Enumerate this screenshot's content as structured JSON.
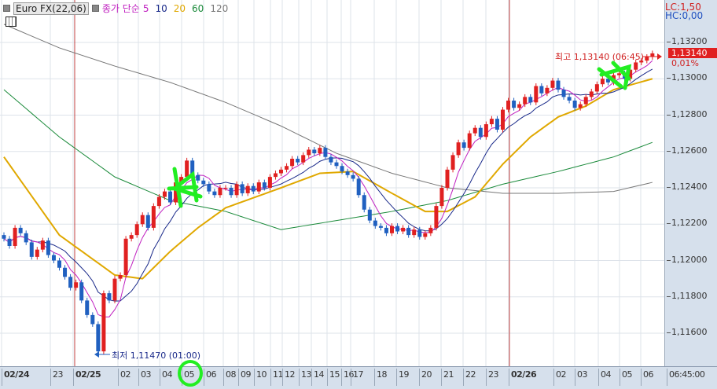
{
  "header": {
    "instrument": "Euro FX(22,06)",
    "ma_label": "종가 단순",
    "ma_periods": [
      {
        "label": "5",
        "color": "#c020c0"
      },
      {
        "label": "10",
        "color": "#1a2a8a"
      },
      {
        "label": "20",
        "color": "#e0a800"
      },
      {
        "label": "60",
        "color": "#1a8a3a"
      },
      {
        "label": "120",
        "color": "#777777"
      }
    ]
  },
  "right_panel": {
    "lc": "LC:1,50",
    "hc": "HC:0,00",
    "last_price": "1,13140",
    "change_pct": "0,01%",
    "y_labels": [
      "1,13200",
      "1,13000",
      "1,12800",
      "1,12600",
      "1,12400",
      "1,12200",
      "1,12000",
      "1,11800",
      "1,11600"
    ]
  },
  "annotations": {
    "high": "최고 1,13140 (06:45)",
    "low": "최저 1,11470 (01:00)"
  },
  "x_labels": [
    {
      "t": "02/24",
      "major": true
    },
    {
      "t": "23"
    },
    {
      "t": "02/25",
      "major": true
    },
    {
      "t": "02"
    },
    {
      "t": "03"
    },
    {
      "t": "04"
    },
    {
      "t": "05"
    },
    {
      "t": "06"
    },
    {
      "t": "08"
    },
    {
      "t": "09"
    },
    {
      "t": "10"
    },
    {
      "t": "11"
    },
    {
      "t": "12"
    },
    {
      "t": "13"
    },
    {
      "t": "14"
    },
    {
      "t": "15"
    },
    {
      "t": "16"
    },
    {
      "t": "17"
    },
    {
      "t": "18"
    },
    {
      "t": "19"
    },
    {
      "t": "20"
    },
    {
      "t": "21"
    },
    {
      "t": "22"
    },
    {
      "t": "23"
    },
    {
      "t": "02/26",
      "major": true
    },
    {
      "t": "02"
    },
    {
      "t": "03"
    },
    {
      "t": "04"
    },
    {
      "t": "05"
    },
    {
      "t": "06"
    },
    {
      "t": "06:45:00"
    }
  ],
  "colors": {
    "up": "#e02020",
    "down": "#2060c0",
    "ma5": "#c020c0",
    "ma10": "#1a2a8a",
    "ma20": "#e0a800",
    "ma60": "#1a8a3a",
    "ma120": "#777777",
    "day_line": "#c04040",
    "scribble": "#22ee22"
  },
  "chart_data": {
    "type": "candlestick",
    "y_range": [
      1.1145,
      1.134
    ],
    "closes": [
      1.1212,
      1.1208,
      1.1218,
      1.1215,
      1.121,
      1.1202,
      1.1206,
      1.1211,
      1.1203,
      1.12,
      1.1196,
      1.1191,
      1.1185,
      1.1188,
      1.1178,
      1.117,
      1.1165,
      1.115,
      1.1182,
      1.1178,
      1.119,
      1.1192,
      1.1212,
      1.1214,
      1.122,
      1.1225,
      1.1218,
      1.123,
      1.1235,
      1.1238,
      1.1232,
      1.1243,
      1.1246,
      1.1255,
      1.1247,
      1.1244,
      1.1242,
      1.1238,
      1.1236,
      1.124,
      1.124,
      1.1236,
      1.1242,
      1.1237,
      1.1241,
      1.1238,
      1.1243,
      1.124,
      1.1246,
      1.1248,
      1.125,
      1.1252,
      1.1256,
      1.1254,
      1.1258,
      1.1261,
      1.1259,
      1.1262,
      1.1257,
      1.1254,
      1.1252,
      1.1249,
      1.1247,
      1.1245,
      1.1236,
      1.1228,
      1.1222,
      1.1219,
      1.1218,
      1.1215,
      1.1219,
      1.1216,
      1.1218,
      1.1214,
      1.1217,
      1.1213,
      1.1215,
      1.1218,
      1.123,
      1.124,
      1.125,
      1.1258,
      1.1265,
      1.1262,
      1.127,
      1.1273,
      1.1268,
      1.1275,
      1.1278,
      1.1272,
      1.1283,
      1.1288,
      1.1284,
      1.1286,
      1.129,
      1.1287,
      1.1296,
      1.1292,
      1.1295,
      1.1299,
      1.1294,
      1.129,
      1.1288,
      1.1284,
      1.1286,
      1.129,
      1.1293,
      1.1297,
      1.13,
      1.1298,
      1.1302,
      1.1303,
      1.13,
      1.1305,
      1.1309,
      1.131,
      1.1312,
      1.1314
    ],
    "ma20": [
      [
        0,
        1.1257
      ],
      [
        10,
        1.1214
      ],
      [
        20,
        1.1192
      ],
      [
        25,
        1.119
      ],
      [
        30,
        1.1205
      ],
      [
        35,
        1.1218
      ],
      [
        40,
        1.1229
      ],
      [
        50,
        1.124
      ],
      [
        57,
        1.1248
      ],
      [
        63,
        1.1249
      ],
      [
        70,
        1.1237
      ],
      [
        76,
        1.1227
      ],
      [
        80,
        1.1227
      ],
      [
        85,
        1.1235
      ],
      [
        90,
        1.1253
      ],
      [
        95,
        1.1268
      ],
      [
        100,
        1.1279
      ],
      [
        105,
        1.1285
      ],
      [
        110,
        1.1294
      ],
      [
        117,
        1.13
      ]
    ],
    "ma60": [
      [
        0,
        1.1294
      ],
      [
        10,
        1.1268
      ],
      [
        20,
        1.1246
      ],
      [
        30,
        1.1233
      ],
      [
        40,
        1.1227
      ],
      [
        50,
        1.1217
      ],
      [
        60,
        1.1222
      ],
      [
        70,
        1.1227
      ],
      [
        80,
        1.1233
      ],
      [
        90,
        1.1242
      ],
      [
        100,
        1.1249
      ],
      [
        110,
        1.1257
      ],
      [
        117,
        1.1265
      ]
    ],
    "ma120": [
      [
        0,
        1.133
      ],
      [
        10,
        1.1317
      ],
      [
        20,
        1.1307
      ],
      [
        30,
        1.1298
      ],
      [
        40,
        1.1287
      ],
      [
        50,
        1.1274
      ],
      [
        60,
        1.1259
      ],
      [
        70,
        1.1248
      ],
      [
        80,
        1.124
      ],
      [
        90,
        1.1237
      ],
      [
        100,
        1.1237
      ],
      [
        110,
        1.1238
      ],
      [
        117,
        1.1243
      ]
    ],
    "high": 1.1314,
    "low": 1.1147
  }
}
